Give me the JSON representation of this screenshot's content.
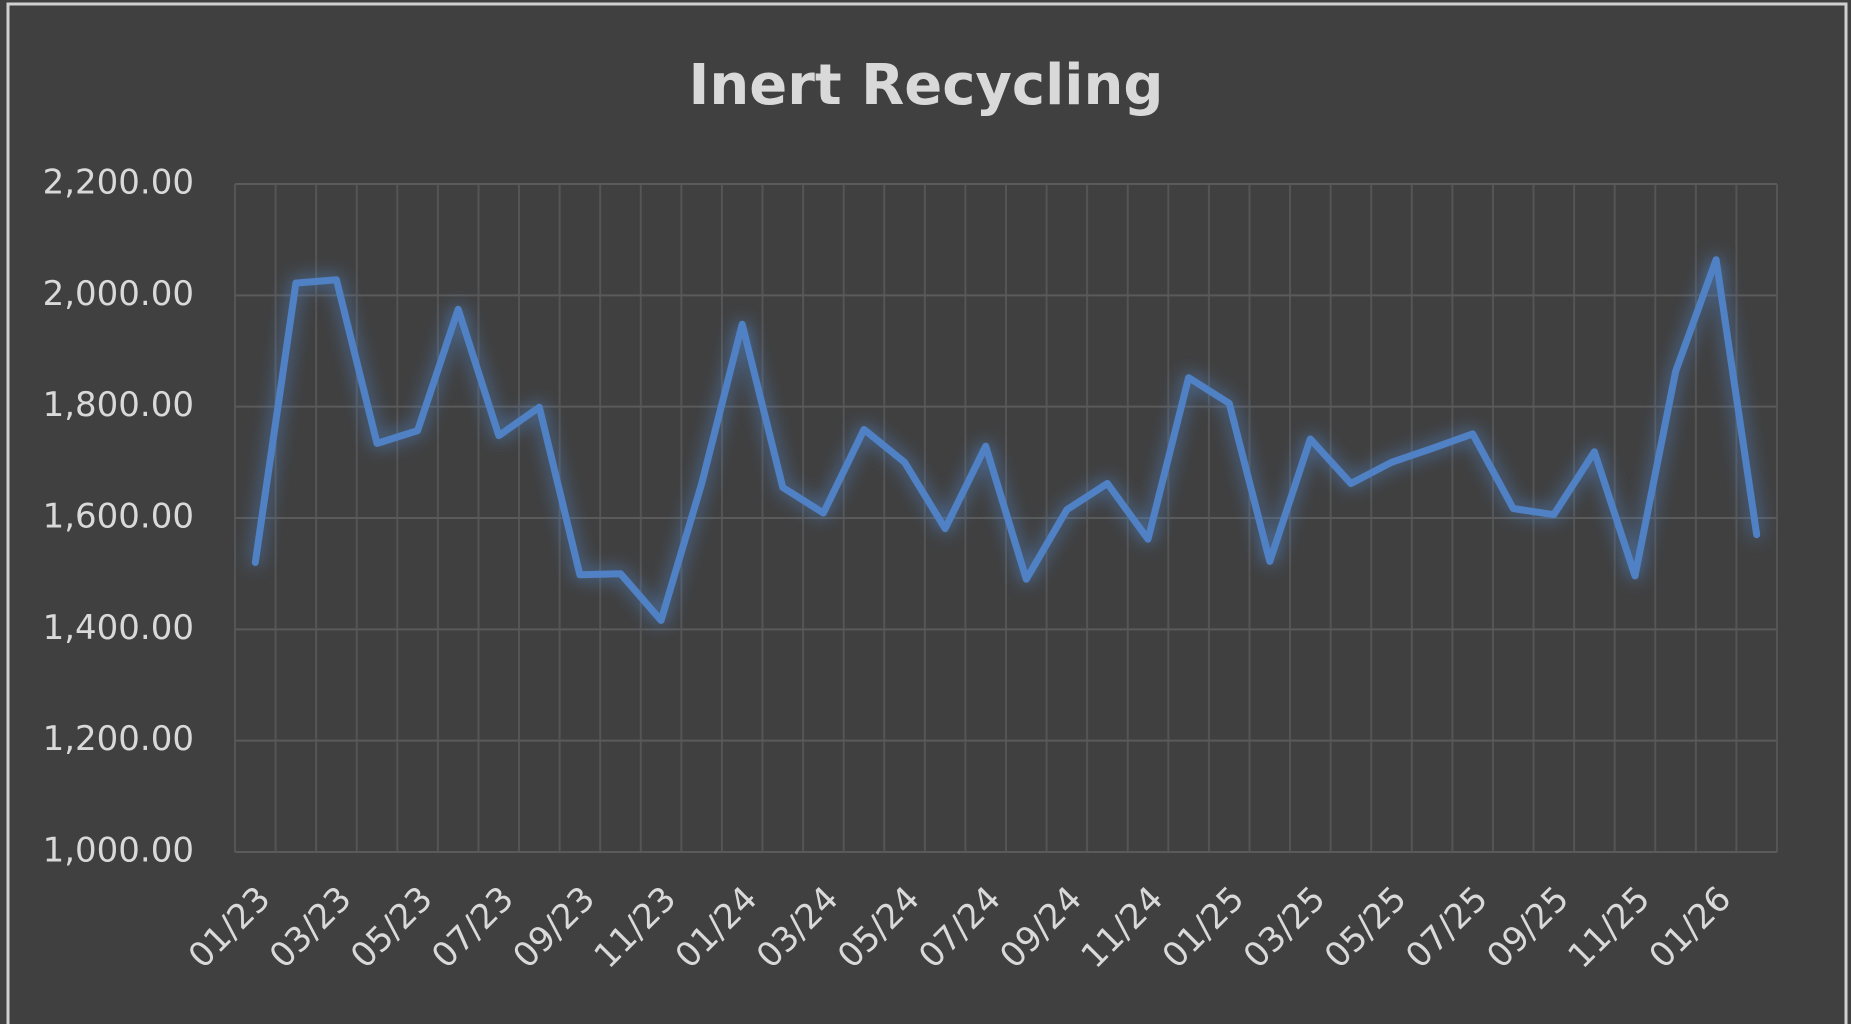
{
  "chart_data": {
    "type": "line",
    "title": "Inert Recycling",
    "categories": [
      "01/23",
      null,
      "03/23",
      null,
      "05/23",
      null,
      "07/23",
      null,
      "09/23",
      null,
      "11/23",
      null,
      "01/24",
      null,
      "03/24",
      null,
      "05/24",
      null,
      "07/24",
      null,
      "09/24",
      null,
      "11/24",
      null,
      "01/25",
      null,
      "03/25",
      null,
      "05/25",
      null,
      "07/25",
      null,
      "09/25",
      null,
      "11/25",
      null,
      "01/26",
      null
    ],
    "values": [
      1520,
      2022,
      2028,
      1734,
      1757,
      1975,
      1748,
      1799,
      1498,
      1500,
      1416,
      1662,
      1948,
      1655,
      1609,
      1759,
      1700,
      1581,
      1729,
      1490,
      1615,
      1662,
      1562,
      1852,
      1806,
      1522,
      1742,
      1662,
      1700,
      1725,
      1751,
      1617,
      1606,
      1719,
      1496,
      1863,
      2064,
      1570
    ],
    "color": "#4f81c4",
    "ylim": [
      1000,
      2200
    ],
    "yticks": [
      {
        "value": 1000,
        "label": "1,000.00"
      },
      {
        "value": 1200,
        "label": "1,200.00"
      },
      {
        "value": 1400,
        "label": "1,400.00"
      },
      {
        "value": 1600,
        "label": "1,600.00"
      },
      {
        "value": 1800,
        "label": "1,800.00"
      },
      {
        "value": 2000,
        "label": "2,000.00"
      },
      {
        "value": 2200,
        "label": "2,200.00"
      }
    ],
    "grid": true
  }
}
